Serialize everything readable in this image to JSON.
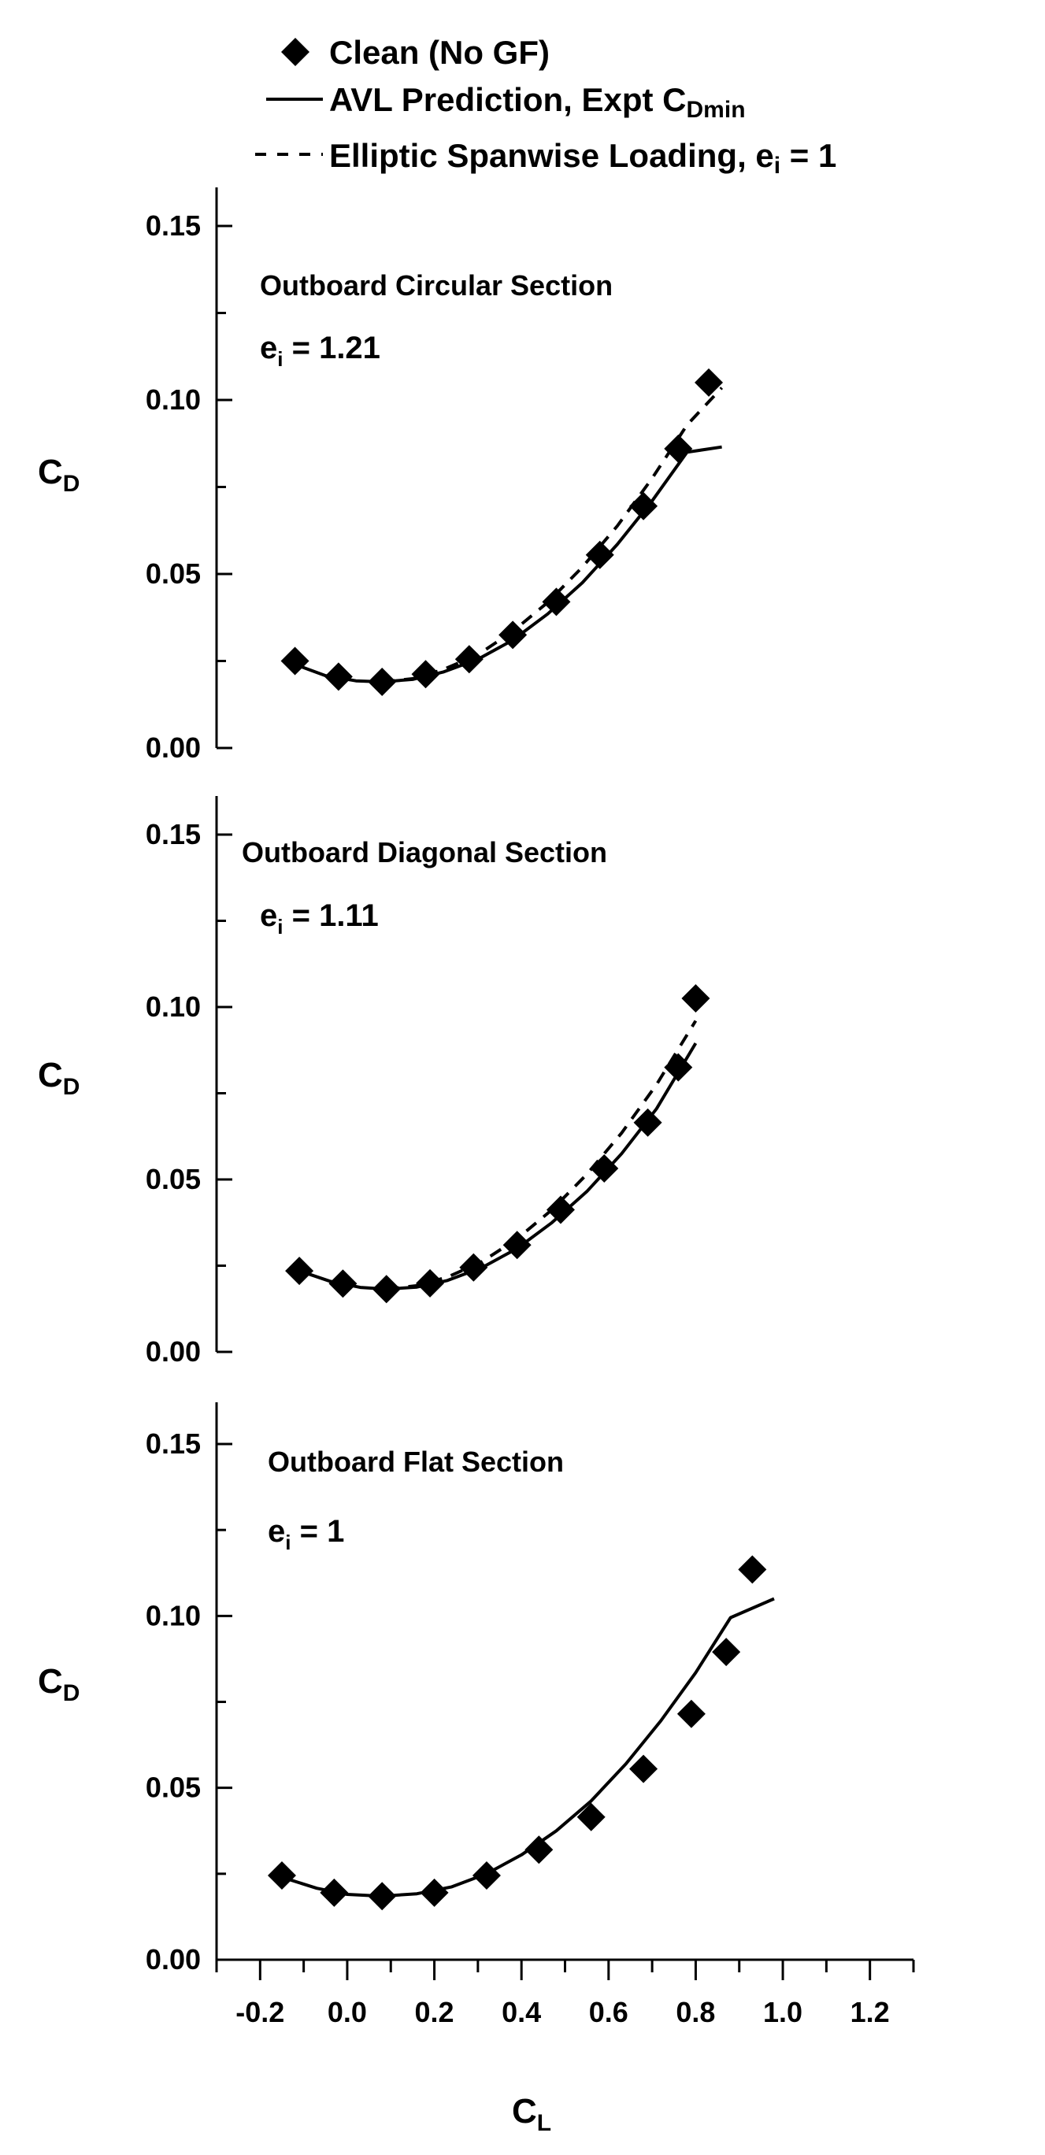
{
  "chart_data": {
    "type": "scatter",
    "legend": {
      "placement": "top",
      "entries": [
        {
          "marker": "diamond",
          "text": "Clean (No GF)"
        },
        {
          "marker": "solid-line",
          "text": "AVL Prediction, Expt C",
          "sub": "Dmin"
        },
        {
          "marker": "dashed-line",
          "text": "Elliptic Spanwise Loading, e",
          "sub": "i",
          "tail": " = 1"
        }
      ]
    },
    "xlabel": {
      "main": "C",
      "sub": "L"
    },
    "x_ticks": [
      "-0.2",
      "0.0",
      "0.2",
      "0.4",
      "0.6",
      "0.8",
      "1.0",
      "1.2"
    ],
    "xlim": [
      -0.3,
      1.3
    ],
    "panels": [
      {
        "title": "Outboard Circular Section",
        "ei_label": {
          "main": "e",
          "sub": "i",
          "tail": " = 1.21"
        },
        "ylabel": {
          "main": "C",
          "sub": "D"
        },
        "ylim": [
          0,
          0.15
        ],
        "y_ticks": [
          "0.15",
          "0.10",
          "0.05",
          "0.00"
        ],
        "series": [
          {
            "name": "Clean (No GF)",
            "kind": "points",
            "x": [
              -0.12,
              -0.02,
              0.08,
              0.18,
              0.28,
              0.38,
              0.48,
              0.58,
              0.68,
              0.76,
              0.83
            ],
            "y": [
              0.025,
              0.0205,
              0.019,
              0.0212,
              0.0255,
              0.0325,
              0.042,
              0.0555,
              0.0695,
              0.086,
              0.105
            ]
          },
          {
            "name": "AVL Prediction, Expt CDmin",
            "kind": "solid",
            "x": [
              -0.12,
              -0.05,
              0.02,
              0.08,
              0.15,
              0.22,
              0.3,
              0.38,
              0.46,
              0.54,
              0.62,
              0.7,
              0.78,
              0.86
            ],
            "y": [
              0.024,
              0.0208,
              0.0193,
              0.019,
              0.0197,
              0.0218,
              0.0255,
              0.031,
              0.0385,
              0.0475,
              0.0585,
              0.071,
              0.085,
              0.0865
            ]
          },
          {
            "name": "Elliptic Spanwise Loading, ei = 1",
            "kind": "dashed",
            "x": [
              0.08,
              0.15,
              0.22,
              0.3,
              0.38,
              0.46,
              0.54,
              0.62,
              0.7,
              0.78,
              0.86
            ],
            "y": [
              0.019,
              0.0199,
              0.0225,
              0.0268,
              0.0335,
              0.0418,
              0.052,
              0.0638,
              0.0775,
              0.0928,
              0.1035
            ]
          }
        ]
      },
      {
        "title": "Outboard Diagonal Section",
        "ei_label": {
          "main": "e",
          "sub": "i",
          "tail": " = 1.11"
        },
        "ylabel": {
          "main": "C",
          "sub": "D"
        },
        "ylim": [
          0,
          0.15
        ],
        "y_ticks": [
          "0.15",
          "0.10",
          "0.05",
          "0.00"
        ],
        "series": [
          {
            "name": "Clean (No GF)",
            "kind": "points",
            "x": [
              -0.11,
              -0.01,
              0.09,
              0.19,
              0.29,
              0.39,
              0.49,
              0.59,
              0.69,
              0.76,
              0.8
            ],
            "y": [
              0.0235,
              0.0198,
              0.0182,
              0.0199,
              0.0245,
              0.031,
              0.0412,
              0.0532,
              0.0665,
              0.0825,
              0.1025
            ]
          },
          {
            "name": "AVL Prediction, Expt CDmin",
            "kind": "solid",
            "x": [
              -0.11,
              -0.04,
              0.03,
              0.09,
              0.16,
              0.23,
              0.31,
              0.39,
              0.47,
              0.55,
              0.63,
              0.71,
              0.8
            ],
            "y": [
              0.0235,
              0.0205,
              0.0187,
              0.0182,
              0.0188,
              0.0207,
              0.0245,
              0.03,
              0.0375,
              0.0465,
              0.0575,
              0.0705,
              0.0895
            ]
          },
          {
            "name": "Elliptic Spanwise Loading, ei = 1",
            "kind": "dashed",
            "x": [
              0.09,
              0.16,
              0.23,
              0.31,
              0.39,
              0.47,
              0.55,
              0.63,
              0.71,
              0.8
            ],
            "y": [
              0.0182,
              0.0192,
              0.0217,
              0.0262,
              0.0328,
              0.0412,
              0.0515,
              0.0635,
              0.0775,
              0.096
            ]
          }
        ]
      },
      {
        "title": "Outboard Flat Section",
        "ei_label": {
          "main": "e",
          "sub": "i",
          "tail": " = 1"
        },
        "ylabel": {
          "main": "C",
          "sub": "D"
        },
        "ylim": [
          0,
          0.15
        ],
        "y_ticks": [
          "0.15",
          "0.10",
          "0.05",
          "0.00"
        ],
        "series": [
          {
            "name": "Clean (No GF)",
            "kind": "points",
            "x": [
              -0.15,
              -0.03,
              0.08,
              0.2,
              0.32,
              0.44,
              0.56,
              0.68,
              0.79,
              0.87,
              0.93
            ],
            "y": [
              0.0245,
              0.0195,
              0.0185,
              0.0195,
              0.0245,
              0.032,
              0.0415,
              0.0555,
              0.0715,
              0.0895,
              0.1135
            ]
          },
          {
            "name": "AVL Prediction, Expt CDmin",
            "kind": "solid",
            "x": [
              -0.15,
              -0.07,
              0.0,
              0.08,
              0.16,
              0.24,
              0.32,
              0.4,
              0.48,
              0.56,
              0.64,
              0.72,
              0.8,
              0.88,
              0.98
            ],
            "y": [
              0.024,
              0.0208,
              0.019,
              0.0185,
              0.0192,
              0.0212,
              0.025,
              0.0305,
              0.0375,
              0.0462,
              0.057,
              0.0695,
              0.0835,
              0.0995,
              0.105
            ]
          }
        ]
      }
    ]
  }
}
